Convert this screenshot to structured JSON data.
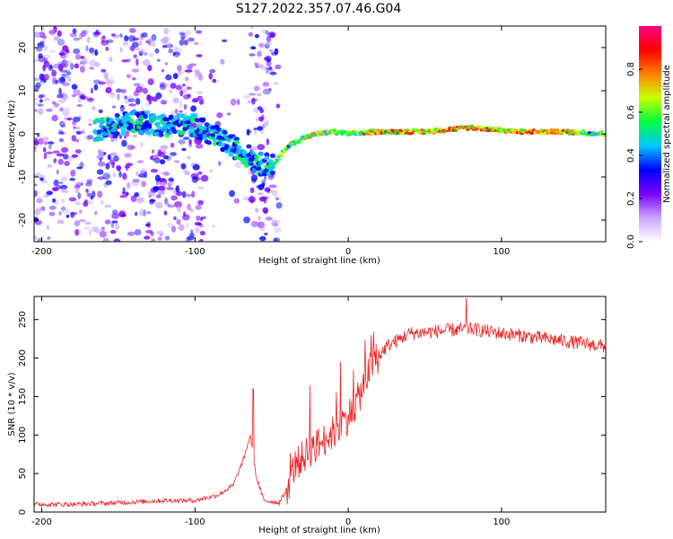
{
  "title": "S127.2022.357.07.46.G04",
  "chart_data": [
    {
      "type": "heatmap",
      "xlabel": "Height of straight line (km)",
      "ylabel": "Frequency (Hz)",
      "xlim": [
        -205,
        168
      ],
      "ylim": [
        -25,
        25
      ],
      "xticks": [
        -200,
        -100,
        0,
        100
      ],
      "yticks": [
        -20,
        -10,
        0,
        10,
        20
      ],
      "colorbar": {
        "label": "Normalized spectral amplitude",
        "range": [
          0,
          1
        ],
        "ticks": [
          "0.0",
          "0.2",
          "0.4",
          "0.6",
          "0.8"
        ],
        "colors": [
          "#ffffff",
          "#c9a6ff",
          "#7a00ff",
          "#0000ff",
          "#00c8ff",
          "#00ff40",
          "#c8ff00",
          "#ff8000",
          "#ff0000",
          "#ff0080"
        ]
      },
      "ridge": [
        {
          "x": -160,
          "y": 1
        },
        {
          "x": -140,
          "y": 3
        },
        {
          "x": -120,
          "y": 2
        },
        {
          "x": -100,
          "y": 2
        },
        {
          "x": -85,
          "y": -1
        },
        {
          "x": -70,
          "y": -4
        },
        {
          "x": -58,
          "y": -7
        },
        {
          "x": -48,
          "y": -7
        },
        {
          "x": -40,
          "y": -3
        },
        {
          "x": -30,
          "y": -1
        },
        {
          "x": -20,
          "y": 0
        },
        {
          "x": -10,
          "y": 0.5
        },
        {
          "x": 0,
          "y": 0
        },
        {
          "x": 20,
          "y": 0.5
        },
        {
          "x": 50,
          "y": 0.5
        },
        {
          "x": 80,
          "y": 1.5
        },
        {
          "x": 110,
          "y": 0.5
        },
        {
          "x": 140,
          "y": 0.5
        },
        {
          "x": 168,
          "y": 0
        }
      ]
    },
    {
      "type": "line",
      "xlabel": "Height of straight line (km)",
      "ylabel": "SNR (10 * v/v)",
      "xlim": [
        -205,
        168
      ],
      "ylim": [
        0,
        280
      ],
      "xticks": [
        -200,
        -100,
        0,
        100
      ],
      "yticks": [
        0,
        50,
        100,
        150,
        200,
        250
      ],
      "color": "#ee2222",
      "envelope": [
        {
          "x": -205,
          "y": 10
        },
        {
          "x": -180,
          "y": 10
        },
        {
          "x": -150,
          "y": 12
        },
        {
          "x": -120,
          "y": 15
        },
        {
          "x": -100,
          "y": 15
        },
        {
          "x": -85,
          "y": 22
        },
        {
          "x": -75,
          "y": 35
        },
        {
          "x": -68,
          "y": 70
        },
        {
          "x": -64,
          "y": 100
        },
        {
          "x": -60,
          "y": 45
        },
        {
          "x": -55,
          "y": 15
        },
        {
          "x": -45,
          "y": 12
        },
        {
          "x": -40,
          "y": 30
        },
        {
          "x": -35,
          "y": 60
        },
        {
          "x": -25,
          "y": 80
        },
        {
          "x": -15,
          "y": 95
        },
        {
          "x": -5,
          "y": 110
        },
        {
          "x": 5,
          "y": 140
        },
        {
          "x": 15,
          "y": 190
        },
        {
          "x": 25,
          "y": 215
        },
        {
          "x": 40,
          "y": 232
        },
        {
          "x": 60,
          "y": 235
        },
        {
          "x": 80,
          "y": 238
        },
        {
          "x": 100,
          "y": 232
        },
        {
          "x": 130,
          "y": 225
        },
        {
          "x": 168,
          "y": 215
        }
      ],
      "peaks": [
        {
          "x": -62,
          "y": 160
        },
        {
          "x": -25,
          "y": 165
        },
        {
          "x": -5,
          "y": 195
        },
        {
          "x": 15,
          "y": 230
        },
        {
          "x": 77,
          "y": 278
        }
      ]
    }
  ]
}
